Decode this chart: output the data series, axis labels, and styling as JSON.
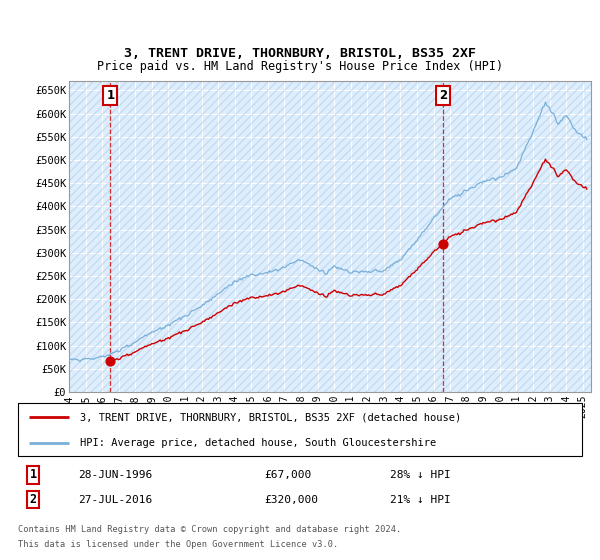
{
  "title": "3, TRENT DRIVE, THORNBURY, BRISTOL, BS35 2XF",
  "subtitle": "Price paid vs. HM Land Registry's House Price Index (HPI)",
  "background_color": "#ffffff",
  "plot_bg_color": "#ddeeff",
  "grid_color": "#ffffff",
  "hpi_color": "#7ab0d8",
  "price_color": "#cc0000",
  "purchase1_date": 1996.49,
  "purchase1_price": 67000,
  "purchase2_date": 2016.56,
  "purchase2_price": 320000,
  "ylim": [
    0,
    670000
  ],
  "yticks": [
    0,
    50000,
    100000,
    150000,
    200000,
    250000,
    300000,
    350000,
    400000,
    450000,
    500000,
    550000,
    600000,
    650000
  ],
  "xlim_start": 1994.0,
  "xlim_end": 2025.5,
  "xtick_years": [
    1994,
    1995,
    1996,
    1997,
    1998,
    1999,
    2000,
    2001,
    2002,
    2003,
    2004,
    2005,
    2006,
    2007,
    2008,
    2009,
    2010,
    2011,
    2012,
    2013,
    2014,
    2015,
    2016,
    2017,
    2018,
    2019,
    2020,
    2021,
    2022,
    2023,
    2024,
    2025
  ],
  "legend_line1": "3, TRENT DRIVE, THORNBURY, BRISTOL, BS35 2XF (detached house)",
  "legend_line2": "HPI: Average price, detached house, South Gloucestershire",
  "table_row1_num": "1",
  "table_row1_date": "28-JUN-1996",
  "table_row1_price": "£67,000",
  "table_row1_hpi": "28% ↓ HPI",
  "table_row2_num": "2",
  "table_row2_date": "27-JUL-2016",
  "table_row2_price": "£320,000",
  "table_row2_hpi": "21% ↓ HPI",
  "footnote_line1": "Contains HM Land Registry data © Crown copyright and database right 2024.",
  "footnote_line2": "This data is licensed under the Open Government Licence v3.0."
}
